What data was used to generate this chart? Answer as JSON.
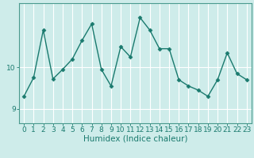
{
  "x": [
    0,
    1,
    2,
    3,
    4,
    5,
    6,
    7,
    8,
    9,
    10,
    11,
    12,
    13,
    14,
    15,
    16,
    17,
    18,
    19,
    20,
    21,
    22,
    23
  ],
  "y": [
    9.3,
    9.75,
    10.9,
    9.72,
    9.95,
    10.2,
    10.65,
    11.05,
    9.95,
    9.55,
    10.5,
    10.25,
    11.2,
    10.9,
    10.45,
    10.45,
    9.7,
    9.55,
    9.45,
    9.3,
    9.7,
    10.35,
    9.85,
    9.7
  ],
  "xlabel": "Humidex (Indice chaleur)",
  "ylabel": "",
  "xlim": [
    -0.5,
    23.5
  ],
  "ylim": [
    8.65,
    11.55
  ],
  "yticks": [
    9,
    10
  ],
  "bg_color": "#ceecea",
  "line_color": "#1a7a6e",
  "marker_color": "#1a7a6e",
  "grid_color": "#ffffff",
  "axis_color": "#4a9a8e",
  "label_color": "#1a7a6e",
  "tick_fontsize": 6.5,
  "xlabel_fontsize": 7.5
}
